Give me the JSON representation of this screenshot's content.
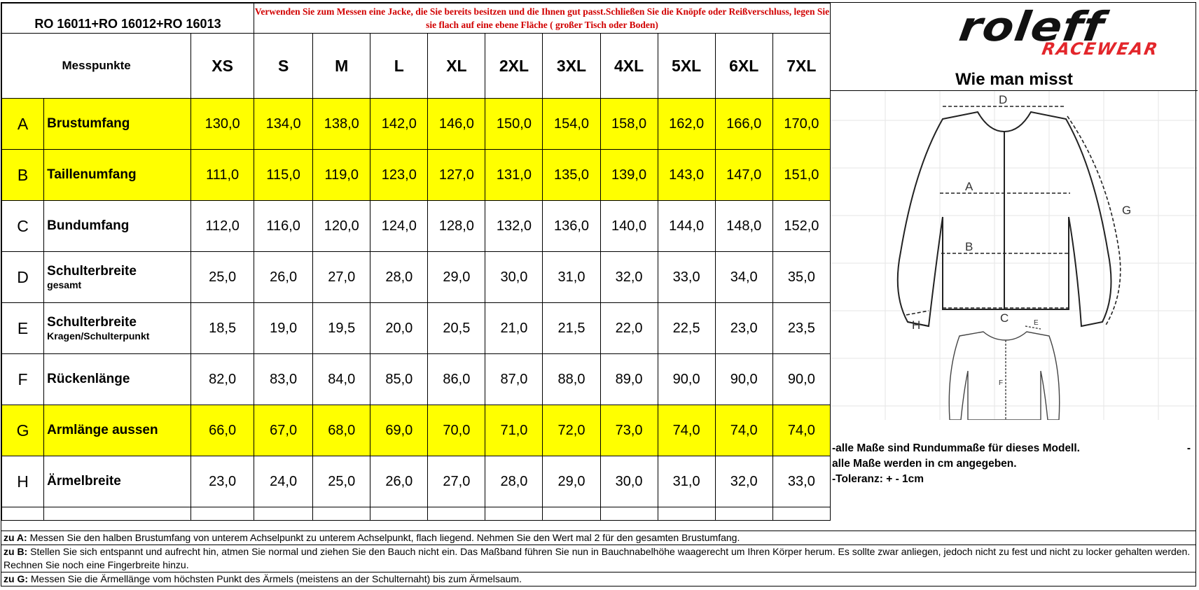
{
  "header": {
    "model": "RO 16011+RO 16012+RO 16013",
    "notice": "Verwenden Sie zum Messen eine Jacke, die Sie bereits besitzen und die Ihnen gut passt.Schließen Sie die Knöpfe oder Reißverschluss, legen Sie sie flach auf eine ebene Fläche ( großer Tisch oder Boden)",
    "measure_points_label": "Messpunkte"
  },
  "sizes": [
    "XS",
    "S",
    "M",
    "L",
    "XL",
    "2XL",
    "3XL",
    "4XL",
    "5XL",
    "6XL",
    "7XL"
  ],
  "measurements": [
    {
      "letter": "A",
      "name": "Brustumfang",
      "sub": "",
      "highlight": true,
      "values": [
        "130,0",
        "134,0",
        "138,0",
        "142,0",
        "146,0",
        "150,0",
        "154,0",
        "158,0",
        "162,0",
        "166,0",
        "170,0"
      ]
    },
    {
      "letter": "B",
      "name": "Taillenumfang",
      "sub": "",
      "highlight": true,
      "values": [
        "111,0",
        "115,0",
        "119,0",
        "123,0",
        "127,0",
        "131,0",
        "135,0",
        "139,0",
        "143,0",
        "147,0",
        "151,0"
      ]
    },
    {
      "letter": "C",
      "name": "Bundumfang",
      "sub": "",
      "highlight": false,
      "values": [
        "112,0",
        "116,0",
        "120,0",
        "124,0",
        "128,0",
        "132,0",
        "136,0",
        "140,0",
        "144,0",
        "148,0",
        "152,0"
      ]
    },
    {
      "letter": "D",
      "name": "Schulterbreite",
      "sub": "gesamt",
      "highlight": false,
      "values": [
        "25,0",
        "26,0",
        "27,0",
        "28,0",
        "29,0",
        "30,0",
        "31,0",
        "32,0",
        "33,0",
        "34,0",
        "35,0"
      ]
    },
    {
      "letter": "E",
      "name": "Schulterbreite",
      "sub": "Kragen/Schulterpunkt",
      "highlight": false,
      "values": [
        "18,5",
        "19,0",
        "19,5",
        "20,0",
        "20,5",
        "21,0",
        "21,5",
        "22,0",
        "22,5",
        "23,0",
        "23,5"
      ]
    },
    {
      "letter": "F",
      "name": "Rückenlänge",
      "sub": "",
      "highlight": false,
      "values": [
        "82,0",
        "83,0",
        "84,0",
        "85,0",
        "86,0",
        "87,0",
        "88,0",
        "89,0",
        "90,0",
        "90,0",
        "90,0"
      ]
    },
    {
      "letter": "G",
      "name": "Armlänge aussen",
      "sub": "",
      "highlight": true,
      "values": [
        "66,0",
        "67,0",
        "68,0",
        "69,0",
        "70,0",
        "71,0",
        "72,0",
        "73,0",
        "74,0",
        "74,0",
        "74,0"
      ]
    },
    {
      "letter": "H",
      "name": "Ärmelbreite",
      "sub": "",
      "highlight": false,
      "values": [
        "23,0",
        "24,0",
        "25,0",
        "26,0",
        "27,0",
        "28,0",
        "29,0",
        "30,0",
        "31,0",
        "32,0",
        "33,0"
      ]
    }
  ],
  "logo": {
    "brand": "roleff",
    "sub": "RACEWEAR"
  },
  "diagram": {
    "title": "Wie man misst",
    "labels": {
      "A": "A",
      "B": "B",
      "C": "C",
      "D": "D",
      "E": "E",
      "F": "F",
      "G": "G",
      "H": "H"
    }
  },
  "notes": {
    "line1": "-alle Maße sind Rundummaße für dieses Modell.",
    "line1_dash": "-",
    "line2": "alle Maße werden in cm angegeben.",
    "line3": "-Toleranz: + -  1cm"
  },
  "footer": [
    {
      "label": "zu A:",
      "text": " Messen Sie den halben Brustumfang von unterem Achselpunkt zu unterem Achselpunkt, flach liegend. Nehmen Sie den Wert mal 2 für den gesamten Brustumfang."
    },
    {
      "label": "zu B:",
      "text": "  Stellen Sie sich entspannt und aufrecht hin, atmen Sie normal und ziehen Sie den Bauch nicht ein. Das Maßband führen Sie nun in Bauchnabelhöhe waagerecht um Ihren Körper herum. Es sollte zwar anliegen, jedoch nicht zu fest und nicht zu locker gehalten werden. Rechnen Sie noch eine Fingerbreite hinzu."
    },
    {
      "label": "zu G:",
      "text": " Messen Sie die Ärmellänge vom höchsten Punkt des Ärmels (meistens an der Schulternaht) bis zum Ärmelsaum."
    }
  ],
  "colors": {
    "highlight": "#ffff00",
    "notice_red": "#d10000",
    "logo_red": "#e3262b"
  }
}
